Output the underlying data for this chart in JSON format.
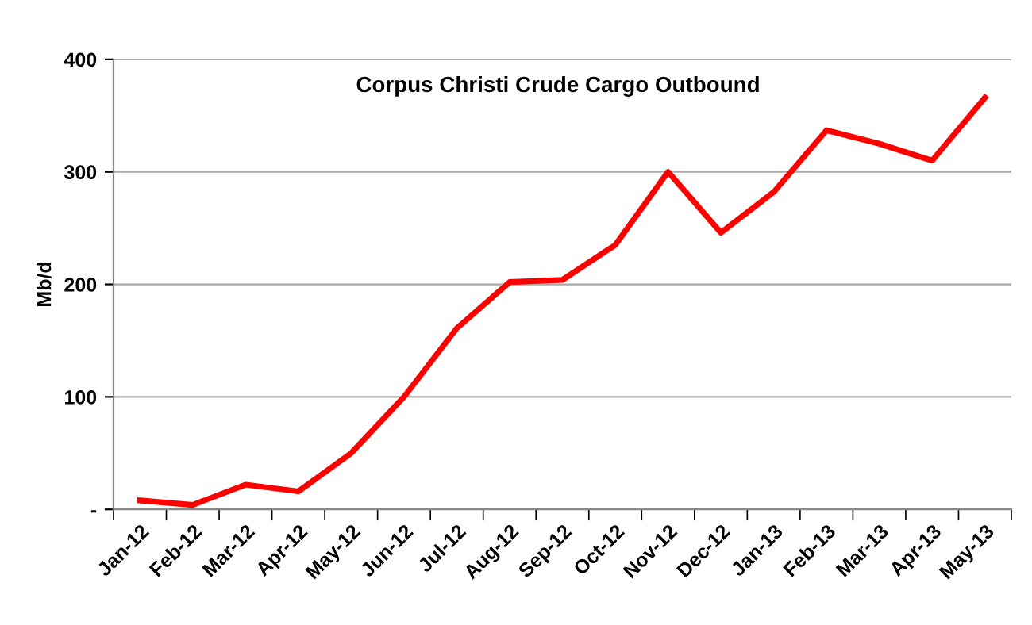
{
  "chart_data": {
    "type": "line",
    "title": "Corpus Christi Crude Cargo Outbound",
    "ylabel": "Mb/d",
    "categories": [
      "Jan-12",
      "Feb-12",
      "Mar-12",
      "Apr-12",
      "May-12",
      "Jun-12",
      "Jul-12",
      "Aug-12",
      "Sep-12",
      "Oct-12",
      "Nov-12",
      "Dec-12",
      "Jan-13",
      "Feb-13",
      "Mar-13",
      "Apr-13",
      "May-13"
    ],
    "series": [
      {
        "color": "#ff0000",
        "values": [
          8,
          4,
          22,
          16,
          50,
          100,
          161,
          202,
          204,
          235,
          300,
          246,
          282,
          337,
          325,
          310,
          366
        ]
      }
    ],
    "ylim": [
      0,
      400
    ],
    "yticks": [
      {
        "value": 0,
        "label": "-"
      },
      100,
      200,
      300,
      400
    ],
    "grid": "y",
    "legend": false,
    "marker": "none",
    "line_style": "solid"
  }
}
